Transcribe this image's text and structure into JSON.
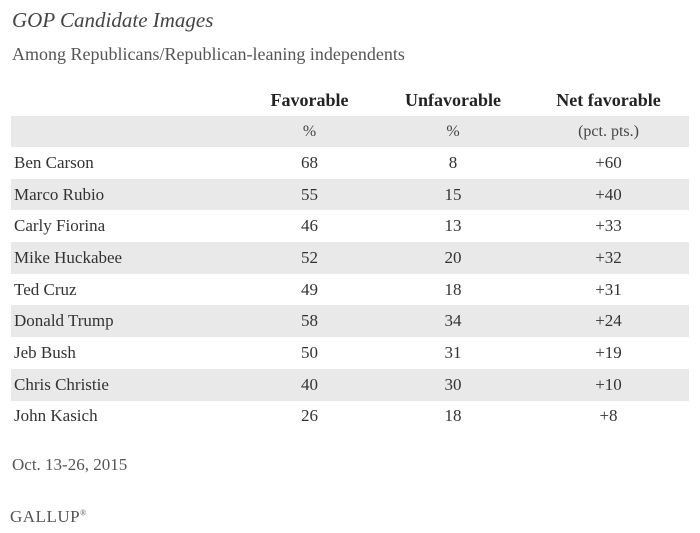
{
  "title": "GOP Candidate Images",
  "subtitle": "Among Republicans/Republican-leaning independents",
  "footnote": "Oct. 13-26, 2015",
  "logo": {
    "text": "GALLUP",
    "mark": "®"
  },
  "chart_data": {
    "type": "table",
    "title": "GOP Candidate Images",
    "subtitle": "Among Republicans/Republican-leaning independents",
    "columns": [
      "",
      "Favorable",
      "Unfavorable",
      "Net favorable"
    ],
    "units": [
      "",
      "%",
      "%",
      "(pct. pts.)"
    ],
    "rows": [
      {
        "name": "Ben Carson",
        "favorable": "68",
        "unfavorable": "8",
        "net": "+60"
      },
      {
        "name": "Marco Rubio",
        "favorable": "55",
        "unfavorable": "15",
        "net": "+40"
      },
      {
        "name": "Carly Fiorina",
        "favorable": "46",
        "unfavorable": "13",
        "net": "+33"
      },
      {
        "name": "Mike Huckabee",
        "favorable": "52",
        "unfavorable": "20",
        "net": "+32"
      },
      {
        "name": "Ted Cruz",
        "favorable": "49",
        "unfavorable": "18",
        "net": "+31"
      },
      {
        "name": "Donald Trump",
        "favorable": "58",
        "unfavorable": "34",
        "net": "+24"
      },
      {
        "name": "Jeb Bush",
        "favorable": "50",
        "unfavorable": "31",
        "net": "+19"
      },
      {
        "name": "Chris Christie",
        "favorable": "40",
        "unfavorable": "30",
        "net": "+10"
      },
      {
        "name": "John Kasich",
        "favorable": "26",
        "unfavorable": "18",
        "net": "+8"
      }
    ]
  },
  "colors": {
    "row_shade": "#e9e9e9",
    "text": "#333333"
  }
}
